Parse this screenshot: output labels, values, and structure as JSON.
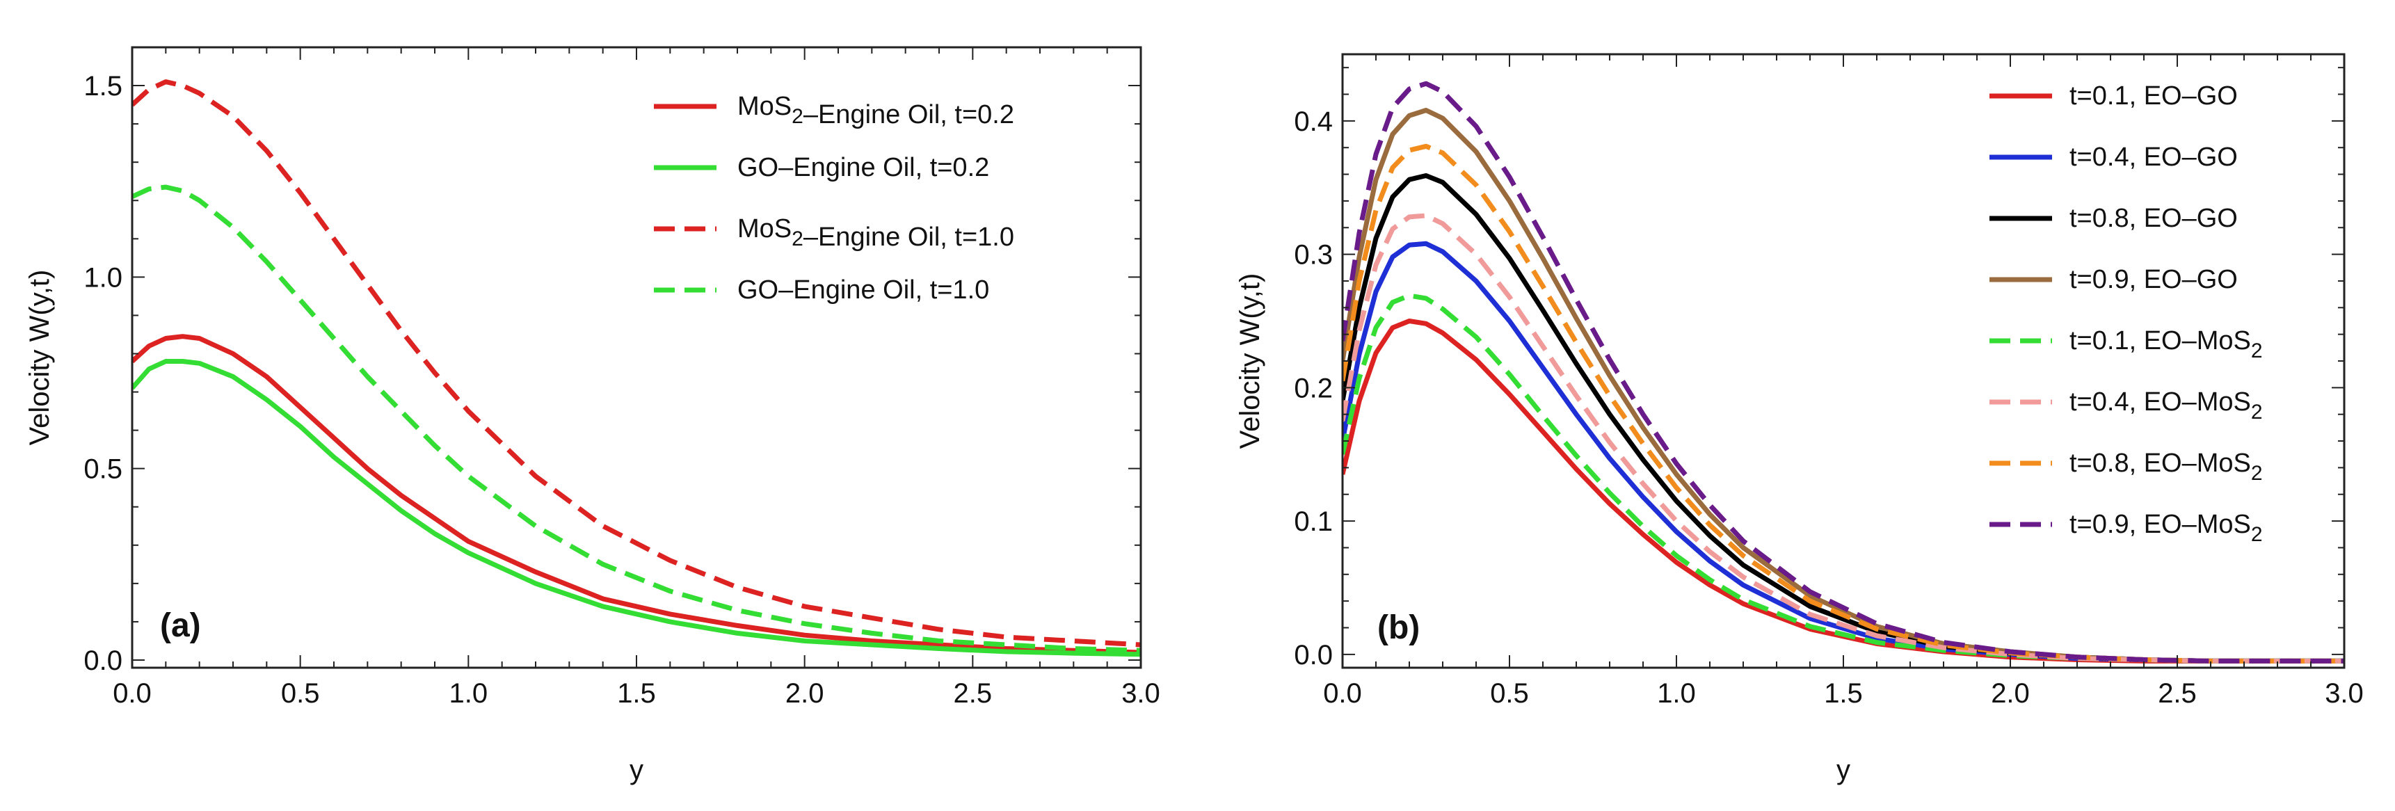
{
  "chart_data": [
    {
      "type": "line",
      "panel_label": "(a)",
      "xlabel": "y",
      "ylabel": "Velocity W(y,t)",
      "xlim": [
        0,
        3
      ],
      "ylim": [
        -0.02,
        1.6
      ],
      "xticks": [
        0.0,
        0.5,
        1.0,
        1.5,
        2.0,
        2.5,
        3.0
      ],
      "xtick_labels": [
        "0.0",
        "0.5",
        "1.0",
        "1.5",
        "2.0",
        "2.5",
        "3.0"
      ],
      "yticks": [
        0.0,
        0.5,
        1.0,
        1.5
      ],
      "ytick_labels": [
        "0.0",
        "0.5",
        "1.0",
        "1.5"
      ],
      "grid": false,
      "legend_position": "top-right",
      "series": [
        {
          "name": "MoS2-Engine Oil",
          "name_parts": [
            "MoS",
            "2",
            "–Engine Oil,  ",
            "t=0.2"
          ],
          "color": "#dd2222",
          "dash": false,
          "x": [
            0,
            0.05,
            0.1,
            0.15,
            0.2,
            0.3,
            0.4,
            0.5,
            0.6,
            0.7,
            0.8,
            0.9,
            1.0,
            1.2,
            1.4,
            1.6,
            1.8,
            2.0,
            2.2,
            2.4,
            2.6,
            2.8,
            3.0
          ],
          "y": [
            0.78,
            0.82,
            0.84,
            0.845,
            0.84,
            0.8,
            0.74,
            0.66,
            0.58,
            0.5,
            0.43,
            0.37,
            0.31,
            0.23,
            0.16,
            0.12,
            0.09,
            0.065,
            0.05,
            0.04,
            0.03,
            0.025,
            0.02
          ]
        },
        {
          "name": "GO-Engine Oil",
          "name_parts": [
            "GO–Engine Oil,     ",
            "t=0.2"
          ],
          "color": "#33dd33",
          "dash": false,
          "x": [
            0,
            0.05,
            0.1,
            0.15,
            0.2,
            0.3,
            0.4,
            0.5,
            0.6,
            0.7,
            0.8,
            0.9,
            1.0,
            1.2,
            1.4,
            1.6,
            1.8,
            2.0,
            2.2,
            2.4,
            2.6,
            2.8,
            3.0
          ],
          "y": [
            0.71,
            0.76,
            0.78,
            0.78,
            0.775,
            0.74,
            0.68,
            0.61,
            0.53,
            0.46,
            0.39,
            0.33,
            0.28,
            0.2,
            0.14,
            0.1,
            0.07,
            0.05,
            0.04,
            0.03,
            0.022,
            0.018,
            0.015
          ]
        },
        {
          "name": "MoS2-Engine Oil",
          "name_parts": [
            "MoS",
            "2",
            "–Engine Oil,  ",
            "t=1.0"
          ],
          "color": "#dd2222",
          "dash": true,
          "x": [
            0,
            0.05,
            0.1,
            0.15,
            0.2,
            0.3,
            0.4,
            0.5,
            0.6,
            0.7,
            0.8,
            0.9,
            1.0,
            1.2,
            1.4,
            1.6,
            1.8,
            2.0,
            2.2,
            2.4,
            2.6,
            2.8,
            3.0
          ],
          "y": [
            1.45,
            1.49,
            1.51,
            1.5,
            1.48,
            1.42,
            1.33,
            1.22,
            1.1,
            0.98,
            0.86,
            0.75,
            0.65,
            0.48,
            0.35,
            0.26,
            0.19,
            0.14,
            0.11,
            0.08,
            0.06,
            0.05,
            0.04
          ]
        },
        {
          "name": "GO-Engine Oil",
          "name_parts": [
            "GO–Engine Oil,     ",
            "t=1.0"
          ],
          "color": "#33dd33",
          "dash": true,
          "x": [
            0,
            0.05,
            0.1,
            0.15,
            0.2,
            0.3,
            0.4,
            0.5,
            0.6,
            0.7,
            0.8,
            0.9,
            1.0,
            1.2,
            1.4,
            1.6,
            1.8,
            2.0,
            2.2,
            2.4,
            2.6,
            2.8,
            3.0
          ],
          "y": [
            1.21,
            1.23,
            1.235,
            1.225,
            1.2,
            1.13,
            1.04,
            0.94,
            0.84,
            0.74,
            0.65,
            0.56,
            0.48,
            0.35,
            0.25,
            0.18,
            0.13,
            0.095,
            0.07,
            0.05,
            0.04,
            0.03,
            0.025
          ]
        }
      ]
    },
    {
      "type": "line",
      "panel_label": "(b)",
      "xlabel": "y",
      "ylabel": "Velocity W(y,t)",
      "xlim": [
        0,
        3
      ],
      "ylim": [
        -0.01,
        0.45
      ],
      "xticks": [
        0.0,
        0.5,
        1.0,
        1.5,
        2.0,
        2.5,
        3.0
      ],
      "xtick_labels": [
        "0.0",
        "0.5",
        "1.0",
        "1.5",
        "2.0",
        "2.5",
        "3.0"
      ],
      "yticks": [
        0.0,
        0.1,
        0.2,
        0.3,
        0.4
      ],
      "ytick_labels": [
        "0.0",
        "0.1",
        "0.2",
        "0.3",
        "0.4"
      ],
      "grid": false,
      "legend_position": "top-right",
      "series": [
        {
          "name": "t=0.1, EO-GO",
          "name_parts": [
            "t=0.1, EO–GO"
          ],
          "color": "#dd2222",
          "dash": false,
          "x": [
            0,
            0.05,
            0.1,
            0.15,
            0.2,
            0.25,
            0.3,
            0.4,
            0.5,
            0.6,
            0.7,
            0.8,
            0.9,
            1.0,
            1.1,
            1.2,
            1.4,
            1.6,
            1.8,
            2.0,
            2.2,
            2.4,
            2.6,
            2.8,
            3.0
          ],
          "y": [
            0.135,
            0.19,
            0.226,
            0.245,
            0.25,
            0.248,
            0.241,
            0.221,
            0.195,
            0.167,
            0.139,
            0.113,
            0.09,
            0.069,
            0.052,
            0.038,
            0.019,
            0.008,
            0.002,
            -0.002,
            -0.004,
            -0.005,
            -0.005,
            -0.005,
            -0.005
          ]
        },
        {
          "name": "t=0.4, EO-GO",
          "name_parts": [
            "t=0.4, EO–GO"
          ],
          "color": "#1f2fd6",
          "dash": false,
          "x": [
            0,
            0.05,
            0.1,
            0.15,
            0.2,
            0.25,
            0.3,
            0.4,
            0.5,
            0.6,
            0.7,
            0.8,
            0.9,
            1.0,
            1.1,
            1.2,
            1.4,
            1.6,
            1.8,
            2.0,
            2.2,
            2.4,
            2.6,
            2.8,
            3.0
          ],
          "y": [
            0.16,
            0.225,
            0.272,
            0.298,
            0.307,
            0.308,
            0.302,
            0.28,
            0.25,
            0.215,
            0.18,
            0.147,
            0.118,
            0.092,
            0.07,
            0.052,
            0.027,
            0.012,
            0.004,
            0.0,
            -0.003,
            -0.004,
            -0.005,
            -0.005,
            -0.005
          ]
        },
        {
          "name": "t=0.8, EO-GO",
          "name_parts": [
            "t=0.8, EO–GO"
          ],
          "color": "#000000",
          "dash": false,
          "x": [
            0,
            0.05,
            0.1,
            0.15,
            0.2,
            0.25,
            0.3,
            0.4,
            0.5,
            0.6,
            0.7,
            0.8,
            0.9,
            1.0,
            1.1,
            1.2,
            1.4,
            1.6,
            1.8,
            2.0,
            2.2,
            2.4,
            2.6,
            2.8,
            3.0
          ],
          "y": [
            0.19,
            0.26,
            0.312,
            0.343,
            0.356,
            0.359,
            0.354,
            0.33,
            0.297,
            0.258,
            0.218,
            0.18,
            0.146,
            0.115,
            0.089,
            0.067,
            0.036,
            0.017,
            0.006,
            0.001,
            -0.002,
            -0.004,
            -0.005,
            -0.005,
            -0.005
          ]
        },
        {
          "name": "t=0.9, EO-GO",
          "name_parts": [
            "t=0.9, EO–GO"
          ],
          "color": "#9a6b3c",
          "dash": false,
          "x": [
            0,
            0.05,
            0.1,
            0.15,
            0.2,
            0.25,
            0.3,
            0.4,
            0.5,
            0.6,
            0.7,
            0.8,
            0.9,
            1.0,
            1.1,
            1.2,
            1.4,
            1.6,
            1.8,
            2.0,
            2.2,
            2.4,
            2.6,
            2.8,
            3.0
          ],
          "y": [
            0.22,
            0.298,
            0.356,
            0.39,
            0.404,
            0.408,
            0.402,
            0.377,
            0.34,
            0.297,
            0.252,
            0.209,
            0.17,
            0.135,
            0.105,
            0.08,
            0.044,
            0.021,
            0.008,
            0.002,
            -0.002,
            -0.004,
            -0.005,
            -0.005,
            -0.005
          ]
        },
        {
          "name": "t=0.1, EO-MoS2",
          "name_parts": [
            "t=0.1, EO–MoS",
            "2"
          ],
          "color": "#33dd33",
          "dash": true,
          "x": [
            0,
            0.05,
            0.1,
            0.15,
            0.2,
            0.25,
            0.3,
            0.4,
            0.5,
            0.6,
            0.7,
            0.8,
            0.9,
            1.0,
            1.1,
            1.2,
            1.4,
            1.6,
            1.8,
            2.0,
            2.2,
            2.4,
            2.6,
            2.8,
            3.0
          ],
          "y": [
            0.15,
            0.207,
            0.245,
            0.264,
            0.269,
            0.267,
            0.259,
            0.238,
            0.21,
            0.179,
            0.149,
            0.121,
            0.096,
            0.074,
            0.056,
            0.041,
            0.021,
            0.009,
            0.003,
            -0.001,
            -0.003,
            -0.004,
            -0.005,
            -0.005,
            -0.005
          ]
        },
        {
          "name": "t=0.4, EO-MoS2",
          "name_parts": [
            "t=0.4, EO–MoS",
            "2"
          ],
          "color": "#f09a9a",
          "dash": true,
          "x": [
            0,
            0.05,
            0.1,
            0.15,
            0.2,
            0.25,
            0.3,
            0.4,
            0.5,
            0.6,
            0.7,
            0.8,
            0.9,
            1.0,
            1.1,
            1.2,
            1.4,
            1.6,
            1.8,
            2.0,
            2.2,
            2.4,
            2.6,
            2.8,
            3.0
          ],
          "y": [
            0.175,
            0.243,
            0.292,
            0.319,
            0.328,
            0.329,
            0.323,
            0.3,
            0.268,
            0.231,
            0.194,
            0.159,
            0.128,
            0.1,
            0.077,
            0.058,
            0.03,
            0.014,
            0.005,
            0.0,
            -0.003,
            -0.004,
            -0.005,
            -0.005,
            -0.005
          ]
        },
        {
          "name": "t=0.8, EO-MoS2",
          "name_parts": [
            "t=0.8, EO–MoS",
            "2"
          ],
          "color": "#f28c1c",
          "dash": true,
          "x": [
            0,
            0.05,
            0.1,
            0.15,
            0.2,
            0.25,
            0.3,
            0.4,
            0.5,
            0.6,
            0.7,
            0.8,
            0.9,
            1.0,
            1.1,
            1.2,
            1.4,
            1.6,
            1.8,
            2.0,
            2.2,
            2.4,
            2.6,
            2.8,
            3.0
          ],
          "y": [
            0.205,
            0.28,
            0.333,
            0.365,
            0.378,
            0.381,
            0.376,
            0.352,
            0.317,
            0.276,
            0.234,
            0.194,
            0.158,
            0.125,
            0.097,
            0.074,
            0.04,
            0.019,
            0.007,
            0.001,
            -0.002,
            -0.004,
            -0.005,
            -0.005,
            -0.005
          ]
        },
        {
          "name": "t=0.9, EO-MoS2",
          "name_parts": [
            "t=0.9, EO–MoS",
            "2"
          ],
          "color": "#6a1b8a",
          "dash": true,
          "x": [
            0,
            0.05,
            0.1,
            0.15,
            0.2,
            0.25,
            0.3,
            0.4,
            0.5,
            0.6,
            0.7,
            0.8,
            0.9,
            1.0,
            1.1,
            1.2,
            1.4,
            1.6,
            1.8,
            2.0,
            2.2,
            2.4,
            2.6,
            2.8,
            3.0
          ],
          "y": [
            0.235,
            0.316,
            0.375,
            0.41,
            0.424,
            0.428,
            0.422,
            0.396,
            0.358,
            0.313,
            0.266,
            0.221,
            0.18,
            0.143,
            0.112,
            0.085,
            0.047,
            0.023,
            0.009,
            0.002,
            -0.002,
            -0.004,
            -0.005,
            -0.005,
            -0.005
          ]
        }
      ]
    }
  ]
}
